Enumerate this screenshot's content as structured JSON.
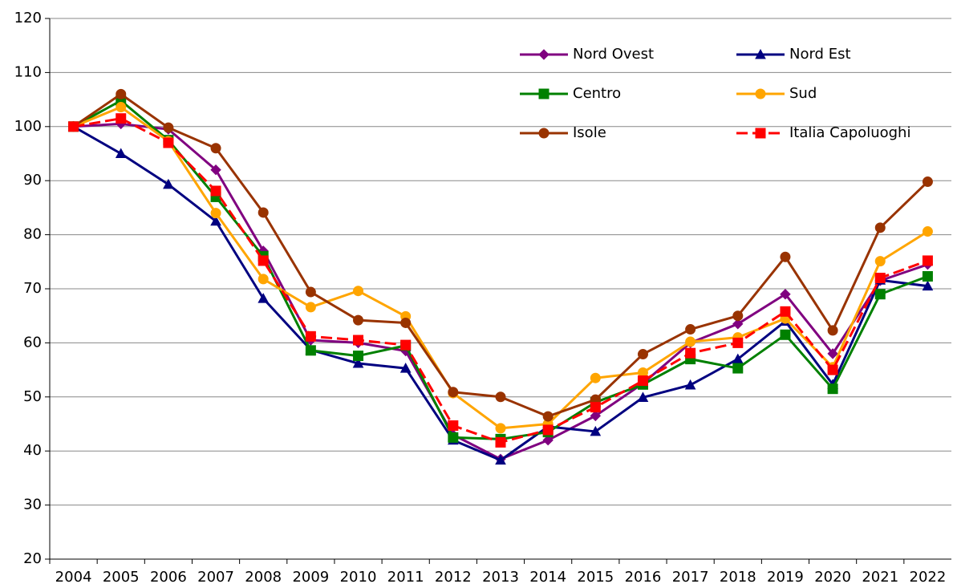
{
  "chart_data": {
    "type": "line",
    "categories": [
      "2004",
      "2005",
      "2006",
      "2007",
      "2008",
      "2009",
      "2010",
      "2011",
      "2012",
      "2013",
      "2014",
      "2015",
      "2016",
      "2017",
      "2018",
      "2019",
      "2020",
      "2021",
      "2022"
    ],
    "series": [
      {
        "name": "Nord Ovest",
        "color": "#800080",
        "marker": "diamond",
        "linestyle": "solid",
        "values": [
          100,
          100.5,
          99.5,
          92,
          77,
          60.5,
          60,
          58.5,
          43,
          38.5,
          42,
          46.5,
          52.5,
          60,
          63.5,
          69,
          58,
          71.5,
          74.5
        ]
      },
      {
        "name": "Nord Est",
        "color": "#000080",
        "marker": "triangle",
        "linestyle": "solid",
        "values": [
          100,
          95,
          89.3,
          82.5,
          68.2,
          58.7,
          56.2,
          55.3,
          42,
          38.3,
          44.5,
          43.6,
          49.9,
          52.2,
          57,
          64,
          52.3,
          71.6,
          70.5
        ]
      },
      {
        "name": "Centro",
        "color": "#008000",
        "marker": "square",
        "linestyle": "solid",
        "values": [
          100,
          104.8,
          97.5,
          87,
          76,
          58.6,
          57.6,
          59.5,
          42.5,
          42.2,
          43.5,
          49,
          52.3,
          57,
          55.3,
          61.5,
          51.5,
          69,
          72.3
        ]
      },
      {
        "name": "Sud",
        "color": "#FFA500",
        "marker": "circle",
        "linestyle": "solid",
        "values": [
          100,
          103.6,
          97.3,
          84,
          71.8,
          66.6,
          69.6,
          64.9,
          50.7,
          44.2,
          45,
          53.5,
          54.5,
          60.2,
          61,
          64.5,
          55.5,
          75.1,
          80.6
        ]
      },
      {
        "name": "Isole",
        "color": "#993300",
        "marker": "circle",
        "linestyle": "solid",
        "values": [
          100,
          106,
          99.8,
          96,
          84.1,
          69.4,
          64.2,
          63.7,
          50.9,
          50,
          46.4,
          49.5,
          57.9,
          62.5,
          65,
          75.9,
          62.3,
          81.3,
          89.8
        ]
      },
      {
        "name": "Italia Capoluoghi",
        "color": "#FF0000",
        "marker": "square",
        "linestyle": "dashed",
        "values": [
          100,
          101.5,
          97,
          88.1,
          75.2,
          61.2,
          60.5,
          59.6,
          44.7,
          41.6,
          43.9,
          48.1,
          53,
          58.1,
          60,
          65.8,
          55,
          72,
          75.2
        ]
      }
    ],
    "ylim": [
      20,
      120
    ],
    "yticks": [
      20,
      30,
      40,
      50,
      60,
      70,
      80,
      90,
      100,
      110,
      120
    ],
    "grid": true,
    "legend": "upper right"
  }
}
